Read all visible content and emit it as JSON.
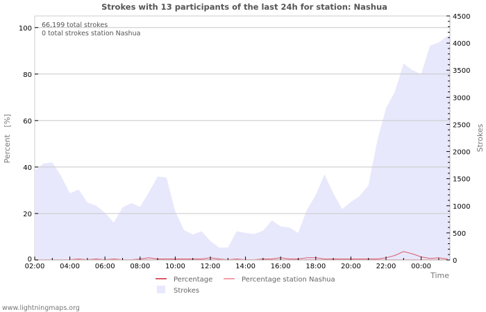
{
  "chart_data": {
    "type": "area",
    "title": "Strokes with 13 participants of the last 24h for station: Nashua",
    "xlabel": "Time",
    "ylabel_left": "Percent   [%]",
    "ylabel_right": "Strokes",
    "ylim_left": [
      0,
      105
    ],
    "ylim_right": [
      0,
      4500
    ],
    "yticks_left": [
      0,
      20,
      40,
      60,
      80,
      100
    ],
    "yticks_right": [
      0,
      500,
      1000,
      1500,
      2000,
      2500,
      3000,
      3500,
      4000,
      4500
    ],
    "xticks": [
      "02:00",
      "04:00",
      "06:00",
      "08:00",
      "10:00",
      "12:00",
      "14:00",
      "16:00",
      "18:00",
      "20:00",
      "22:00",
      "00:00"
    ],
    "grid": true,
    "legend_position": "bottom",
    "annotations": [
      "66,199 total strokes",
      "0 total strokes station Nashua"
    ],
    "x": [
      "02:00",
      "02:30",
      "03:00",
      "03:30",
      "04:00",
      "04:30",
      "05:00",
      "05:30",
      "06:00",
      "06:30",
      "07:00",
      "07:30",
      "08:00",
      "08:30",
      "09:00",
      "09:30",
      "10:00",
      "10:30",
      "11:00",
      "11:30",
      "12:00",
      "12:30",
      "13:00",
      "13:30",
      "14:00",
      "14:30",
      "15:00",
      "15:30",
      "16:00",
      "16:30",
      "17:00",
      "17:30",
      "18:00",
      "18:30",
      "19:00",
      "19:30",
      "20:00",
      "20:30",
      "21:00",
      "21:30",
      "22:00",
      "22:30",
      "23:00",
      "23:30",
      "00:00",
      "00:30",
      "01:00",
      "01:30"
    ],
    "series": [
      {
        "name": "Strokes",
        "axis": "right",
        "color": "#e8e8fc",
        "values": [
          1650,
          1780,
          1800,
          1550,
          1230,
          1300,
          1060,
          1000,
          870,
          690,
          970,
          1050,
          980,
          1250,
          1540,
          1520,
          900,
          550,
          470,
          530,
          350,
          230,
          230,
          530,
          500,
          480,
          540,
          730,
          620,
          600,
          500,
          930,
          1200,
          1580,
          1230,
          940,
          1070,
          1180,
          1380,
          2200,
          2800,
          3100,
          3620,
          3500,
          3430,
          3950,
          4010,
          4130
        ]
      },
      {
        "name": "Percentage",
        "axis": "left",
        "color": "#d85a6a",
        "values": [
          0,
          0,
          0,
          0,
          0,
          0.3,
          0,
          0.3,
          0,
          0.3,
          0,
          0,
          0.3,
          0.8,
          0.3,
          0.3,
          0.3,
          0.3,
          0.3,
          0.3,
          0.8,
          0.3,
          0,
          0.3,
          0,
          0,
          0.3,
          0.3,
          0.8,
          0.3,
          0.3,
          0.8,
          0.8,
          0.3,
          0.3,
          0.3,
          0.3,
          0.3,
          0.3,
          0.3,
          0.8,
          1.8,
          3.5,
          2.5,
          1.2,
          0.5,
          0.8,
          0.3
        ]
      },
      {
        "name": "Percentage station Nashua",
        "axis": "left",
        "color": "#f4a0a8",
        "values": [
          0,
          0,
          0,
          0,
          0,
          0,
          0,
          0,
          0,
          0,
          0,
          0,
          0,
          0,
          0,
          0,
          0,
          0,
          0,
          0,
          0,
          0,
          0,
          0,
          0,
          0,
          0,
          0,
          0,
          0,
          0,
          0,
          0,
          0,
          0,
          0,
          0,
          0,
          0,
          0,
          0,
          0,
          0,
          0,
          0,
          0,
          0,
          0
        ]
      }
    ]
  },
  "legend": {
    "percentage": "Percentage",
    "percentage_station": "Percentage station Nashua",
    "strokes": "Strokes"
  },
  "footer": "www.lightningmaps.org"
}
